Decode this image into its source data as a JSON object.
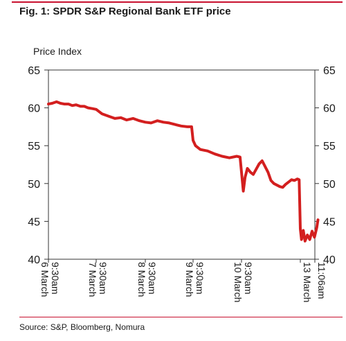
{
  "figure": {
    "title": "Fig. 1: SPDR S&P Regional Bank ETF price",
    "source": "Source: S&P, Bloomberg, Nomura"
  },
  "colors": {
    "accent": "#c8102e",
    "line": "#d31f1f"
  },
  "chart_data": {
    "type": "line",
    "title": "Fig. 1: SPDR S&P Regional Bank ETF price",
    "ylabel": "Price Index",
    "xlabel": "",
    "ylim": [
      40,
      65
    ],
    "yticks": [
      40,
      45,
      50,
      55,
      60,
      65
    ],
    "grid": false,
    "legend": "none",
    "x_tick_labels": [
      "9:30am 6 March",
      "9:30am 7 March",
      "9:30am 8 March",
      "9:30am 9 March",
      "9:30am 10 March",
      "13 March",
      "11:06am"
    ],
    "series": [
      {
        "x": [
          0,
          0.08,
          0.17,
          0.25,
          0.33,
          0.42,
          0.5,
          0.58,
          0.67,
          0.75,
          0.83,
          0.92,
          1.0,
          1.12,
          1.25,
          1.38,
          1.5,
          1.62,
          1.75,
          1.88,
          2.0,
          2.12,
          2.25,
          2.38,
          2.5,
          2.62,
          2.75,
          2.88,
          2.97,
          3.0,
          3.05,
          3.15,
          3.3,
          3.45,
          3.6,
          3.75,
          3.9,
          3.97,
          4.0,
          4.03,
          4.06,
          4.1,
          4.15,
          4.2,
          4.3,
          4.35,
          4.45,
          4.5,
          4.55,
          4.65,
          4.7,
          4.75,
          4.85,
          4.9,
          4.95,
          4.98,
          5.0,
          5.02,
          5.05,
          5.08,
          5.12,
          5.16,
          5.2,
          5.24,
          5.28,
          5.3
        ],
        "values": [
          60.5,
          60.6,
          60.8,
          60.6,
          60.5,
          60.5,
          60.3,
          60.4,
          60.2,
          60.2,
          60.0,
          59.9,
          59.8,
          59.2,
          58.9,
          58.6,
          58.7,
          58.4,
          58.6,
          58.3,
          58.1,
          58.0,
          58.3,
          58.1,
          58.0,
          57.8,
          57.6,
          57.5,
          57.5,
          55.7,
          55.0,
          54.5,
          54.3,
          53.9,
          53.6,
          53.4,
          53.6,
          53.5,
          51.5,
          49.0,
          50.8,
          52.0,
          51.5,
          51.2,
          52.6,
          53.0,
          51.5,
          50.4,
          50.0,
          49.6,
          49.5,
          49.9,
          50.5,
          50.4,
          50.6,
          50.5,
          44.0,
          42.6,
          43.8,
          42.4,
          43.2,
          42.6,
          43.7,
          42.9,
          44.2,
          45.2
        ]
      }
    ]
  }
}
